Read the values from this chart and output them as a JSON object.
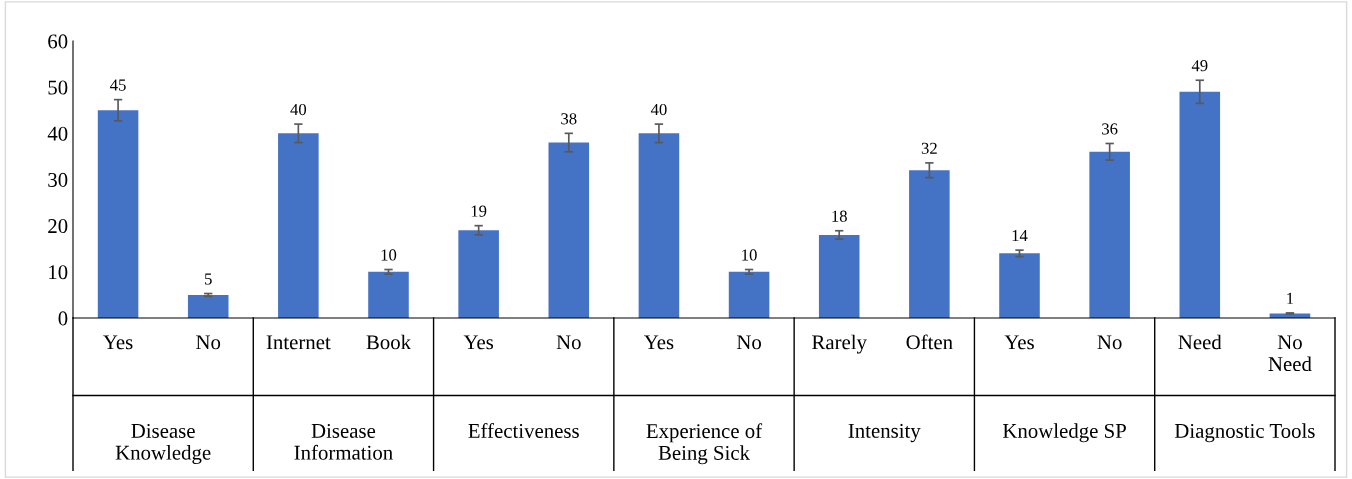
{
  "chart_data": {
    "type": "bar",
    "categories": [
      "Yes",
      "No",
      "Internet",
      "Book",
      "Yes",
      "No",
      "Yes",
      "No",
      "Rarely",
      "Often",
      "Yes",
      "No",
      "Need",
      "No\nNeed"
    ],
    "series": [
      {
        "color": "#4472c4",
        "values": [
          45,
          5,
          40,
          10,
          19,
          38,
          40,
          10,
          18,
          32,
          14,
          36,
          49,
          1
        ],
        "errors": [
          2.3,
          0.3,
          2,
          0.5,
          1,
          2,
          2,
          0.5,
          0.9,
          1.6,
          0.7,
          1.8,
          2.5,
          0.1
        ]
      }
    ],
    "annotations": [
      "Disease\nKnowledge",
      "Disease\nInformation",
      "Effectiveness",
      "Experience of\nBeing Sick",
      "Intensity",
      "Knowledge SP",
      "Diagnostic Tools"
    ],
    "ylim": [
      0,
      60
    ],
    "yticks": [
      0,
      10,
      20,
      30,
      40,
      50,
      60
    ],
    "data_labels": true,
    "grid": false,
    "legend": false
  }
}
